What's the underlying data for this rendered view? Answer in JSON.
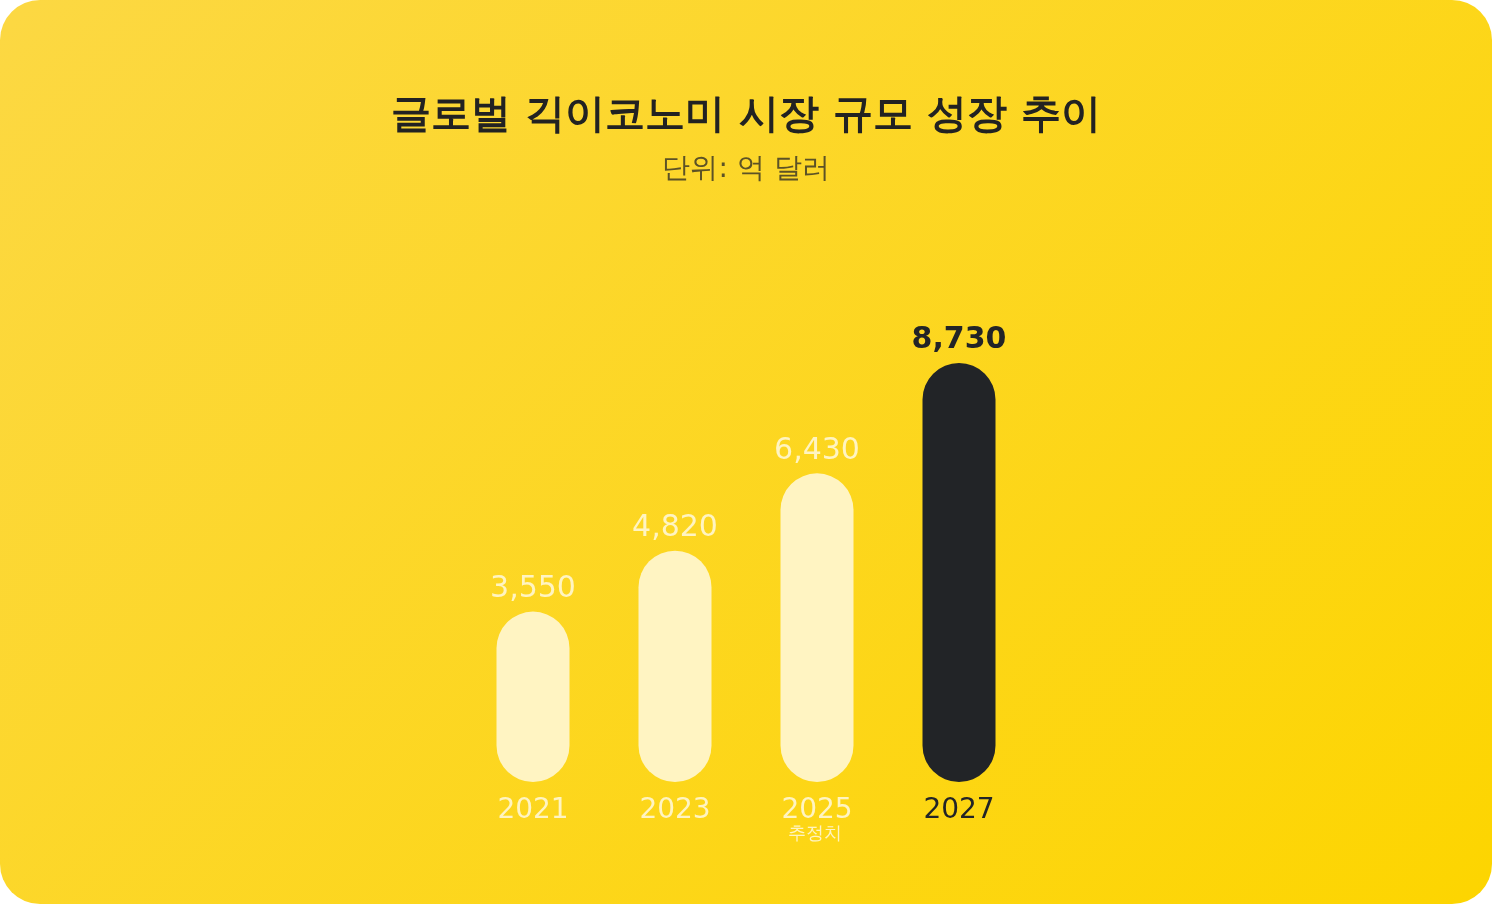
{
  "chart_data": {
    "type": "bar",
    "title": "글로벌 긱이코노미 시장 규모 성장 추이",
    "subtitle": "단위: 억 달러",
    "categories": [
      "2021",
      "2023",
      "2025",
      "2027"
    ],
    "values": [
      3550,
      4820,
      6430,
      8730
    ],
    "colors": [
      "#fff4c2",
      "#fff4c2",
      "#fff4c2",
      "#222427"
    ],
    "value_labels": [
      "3,550",
      "4,820",
      "6,430",
      "8,730"
    ],
    "annotations": [
      "추정치"
    ]
  }
}
